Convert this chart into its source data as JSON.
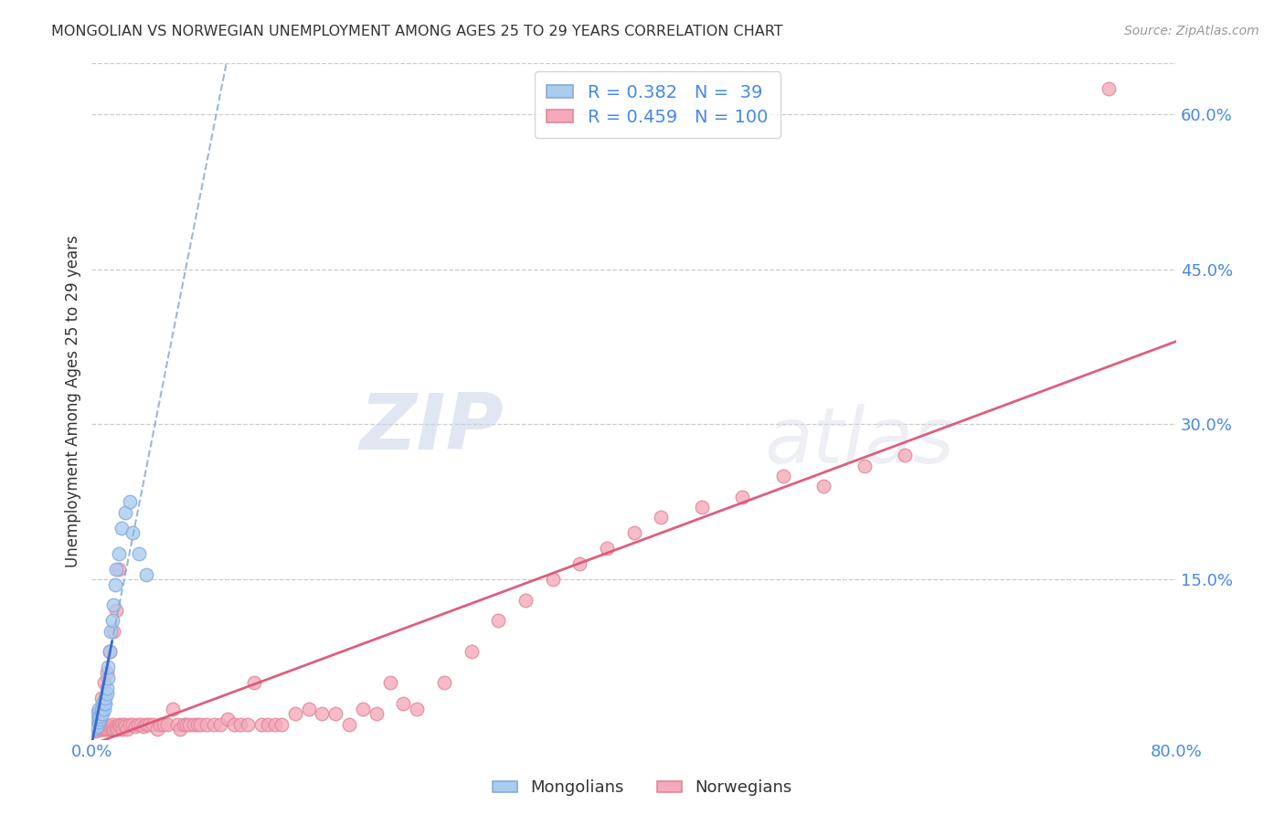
{
  "title": "MONGOLIAN VS NORWEGIAN UNEMPLOYMENT AMONG AGES 25 TO 29 YEARS CORRELATION CHART",
  "source": "Source: ZipAtlas.com",
  "ylabel": "Unemployment Among Ages 25 to 29 years",
  "xlim": [
    0.0,
    0.8
  ],
  "ylim": [
    -0.005,
    0.65
  ],
  "mongolian_color": "#aaccf0",
  "mongolian_edge": "#88aadd",
  "norwegian_color": "#f5aabb",
  "norwegian_edge": "#e08898",
  "trend_mongolian_color": "#3366cc",
  "trend_norwegian_color": "#dd5577",
  "legend_R_mongolian": "0.382",
  "legend_N_mongolian": "39",
  "legend_R_norwegian": "0.459",
  "legend_N_norwegian": "100",
  "background_color": "#ffffff",
  "grid_color": "#cccccc",
  "mongolian_scatter_x": [
    0.001,
    0.001,
    0.002,
    0.002,
    0.003,
    0.003,
    0.004,
    0.004,
    0.004,
    0.005,
    0.005,
    0.005,
    0.006,
    0.006,
    0.007,
    0.007,
    0.008,
    0.008,
    0.009,
    0.009,
    0.01,
    0.01,
    0.011,
    0.011,
    0.012,
    0.012,
    0.013,
    0.014,
    0.015,
    0.016,
    0.017,
    0.018,
    0.02,
    0.022,
    0.025,
    0.028,
    0.03,
    0.035,
    0.04
  ],
  "mongolian_scatter_y": [
    0.005,
    0.008,
    0.01,
    0.015,
    0.01,
    0.012,
    0.008,
    0.015,
    0.02,
    0.012,
    0.02,
    0.025,
    0.015,
    0.018,
    0.02,
    0.025,
    0.02,
    0.03,
    0.025,
    0.03,
    0.03,
    0.035,
    0.04,
    0.045,
    0.055,
    0.065,
    0.08,
    0.1,
    0.11,
    0.125,
    0.145,
    0.16,
    0.175,
    0.2,
    0.215,
    0.225,
    0.195,
    0.175,
    0.155
  ],
  "norwegian_scatter_x": [
    0.001,
    0.002,
    0.003,
    0.004,
    0.005,
    0.005,
    0.006,
    0.006,
    0.007,
    0.008,
    0.008,
    0.009,
    0.01,
    0.01,
    0.011,
    0.012,
    0.013,
    0.014,
    0.015,
    0.015,
    0.016,
    0.017,
    0.018,
    0.019,
    0.02,
    0.021,
    0.022,
    0.023,
    0.024,
    0.025,
    0.026,
    0.028,
    0.03,
    0.032,
    0.034,
    0.036,
    0.038,
    0.04,
    0.042,
    0.045,
    0.048,
    0.05,
    0.053,
    0.056,
    0.06,
    0.063,
    0.065,
    0.068,
    0.07,
    0.072,
    0.075,
    0.078,
    0.08,
    0.085,
    0.09,
    0.095,
    0.1,
    0.105,
    0.11,
    0.115,
    0.12,
    0.125,
    0.13,
    0.135,
    0.14,
    0.15,
    0.16,
    0.17,
    0.18,
    0.19,
    0.2,
    0.21,
    0.22,
    0.23,
    0.24,
    0.26,
    0.28,
    0.3,
    0.32,
    0.34,
    0.36,
    0.38,
    0.4,
    0.42,
    0.45,
    0.48,
    0.51,
    0.54,
    0.57,
    0.6,
    0.003,
    0.004,
    0.007,
    0.009,
    0.011,
    0.013,
    0.016,
    0.018,
    0.02,
    0.75
  ],
  "norwegian_scatter_y": [
    0.005,
    0.005,
    0.003,
    0.007,
    0.005,
    0.01,
    0.005,
    0.008,
    0.005,
    0.005,
    0.008,
    0.005,
    0.005,
    0.01,
    0.005,
    0.005,
    0.008,
    0.005,
    0.005,
    0.01,
    0.005,
    0.008,
    0.005,
    0.005,
    0.01,
    0.008,
    0.01,
    0.005,
    0.01,
    0.008,
    0.005,
    0.01,
    0.01,
    0.008,
    0.01,
    0.01,
    0.008,
    0.01,
    0.01,
    0.01,
    0.005,
    0.01,
    0.01,
    0.01,
    0.025,
    0.01,
    0.005,
    0.01,
    0.01,
    0.01,
    0.01,
    0.01,
    0.01,
    0.01,
    0.01,
    0.01,
    0.015,
    0.01,
    0.01,
    0.01,
    0.05,
    0.01,
    0.01,
    0.01,
    0.01,
    0.02,
    0.025,
    0.02,
    0.02,
    0.01,
    0.025,
    0.02,
    0.05,
    0.03,
    0.025,
    0.05,
    0.08,
    0.11,
    0.13,
    0.15,
    0.165,
    0.18,
    0.195,
    0.21,
    0.22,
    0.23,
    0.25,
    0.24,
    0.26,
    0.27,
    0.005,
    0.02,
    0.035,
    0.05,
    0.06,
    0.08,
    0.1,
    0.12,
    0.16,
    0.625
  ]
}
